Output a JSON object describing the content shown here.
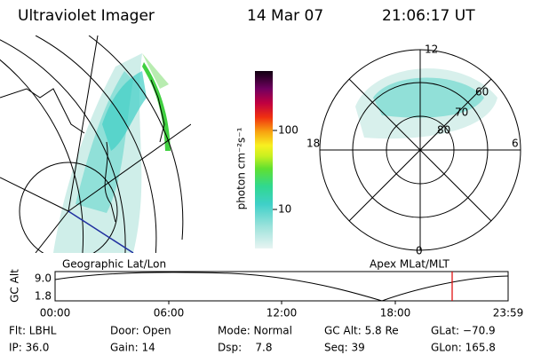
{
  "header": {
    "title": "Ultraviolet Imager",
    "date": "14 Mar 07",
    "time": "21:06:17 UT"
  },
  "colorbar": {
    "label": "photon cm⁻²s⁻¹",
    "ticks": [
      "100",
      "10"
    ]
  },
  "polar_plot": {
    "mlt_labels": [
      "12",
      "18",
      "6",
      "0"
    ],
    "lat_labels": [
      "60",
      "70",
      "80"
    ]
  },
  "projections": {
    "left": "Geographic Lat/Lon",
    "right": "Apex MLat/MLT"
  },
  "altitude_plot": {
    "axis_label": "GC Alt",
    "y_labels": [
      "9.0",
      "1.8"
    ],
    "x_labels": [
      "00:00",
      "06:00",
      "12:00",
      "18:00",
      "23:59"
    ]
  },
  "info": {
    "rows": [
      [
        "Flt: LBHL",
        "Door: Open",
        "Mode: Normal",
        "GC Alt: 5.8 Re",
        "GLat: −70.9"
      ],
      [
        "IP: 36.0",
        "Gain: 14",
        "Dsp:    7.8",
        "Seq: 39",
        "GLon: 165.8"
      ]
    ]
  }
}
